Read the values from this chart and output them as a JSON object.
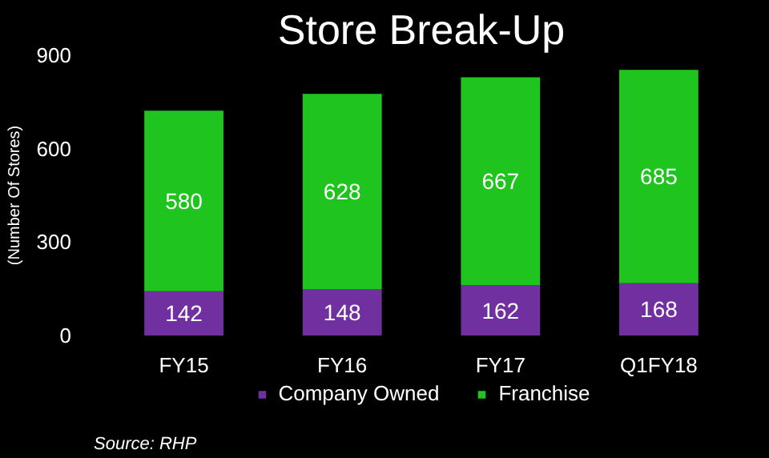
{
  "chart_data": {
    "type": "bar",
    "title": "Store Break-Up",
    "ylabel": "(Number Of Stores)",
    "categories": [
      "FY15",
      "FY16",
      "FY17",
      "Q1FY18"
    ],
    "series": [
      {
        "name": "Company Owned",
        "color": "#7030a0",
        "values": [
          142,
          148,
          162,
          168
        ]
      },
      {
        "name": "Franchise",
        "color": "#1fc41f",
        "values": [
          580,
          628,
          667,
          685
        ]
      }
    ],
    "stacked": true,
    "ylim": [
      0,
      900
    ],
    "yticks": [
      0,
      300,
      600,
      900
    ],
    "data_labels": true,
    "legend": "bottom",
    "grid": false,
    "annotations": [
      "Source: RHP"
    ]
  }
}
